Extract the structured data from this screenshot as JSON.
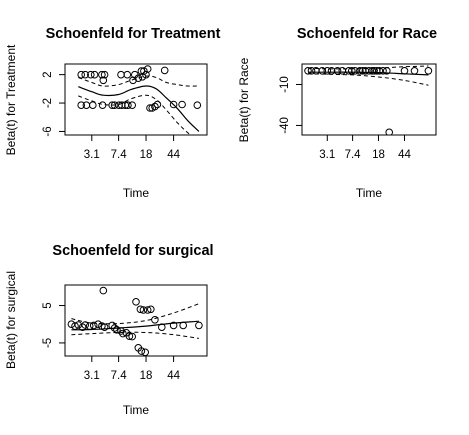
{
  "chart_data": [
    {
      "type": "scatter",
      "title": "Schoenfeld for Treatment",
      "xlabel": "Time",
      "ylabel": "Beta(t) for Treatment",
      "x_scale": "log",
      "xticks": [
        3.1,
        7.4,
        18,
        44
      ],
      "xlim": [
        1.3,
        130
      ],
      "yticks": [
        2,
        -2,
        -6
      ],
      "ylim": [
        -6.5,
        3.5
      ],
      "points": [
        {
          "x": 2.2,
          "y": 2.0
        },
        {
          "x": 2.5,
          "y": 2.0
        },
        {
          "x": 3.0,
          "y": 2.0
        },
        {
          "x": 3.4,
          "y": 2.0
        },
        {
          "x": 4.3,
          "y": 2.0
        },
        {
          "x": 4.7,
          "y": 2.0
        },
        {
          "x": 4.5,
          "y": 1.2
        },
        {
          "x": 2.2,
          "y": -2.3
        },
        {
          "x": 2.6,
          "y": -2.3
        },
        {
          "x": 3.2,
          "y": -2.3
        },
        {
          "x": 4.4,
          "y": -2.3
        },
        {
          "x": 6.0,
          "y": -2.3
        },
        {
          "x": 6.5,
          "y": -2.3
        },
        {
          "x": 7.5,
          "y": -2.3
        },
        {
          "x": 8.2,
          "y": -2.3
        },
        {
          "x": 9.2,
          "y": -2.3
        },
        {
          "x": 10.0,
          "y": -2.3
        },
        {
          "x": 11.5,
          "y": -2.3
        },
        {
          "x": 8.0,
          "y": 2.0
        },
        {
          "x": 9.8,
          "y": 2.0
        },
        {
          "x": 12.5,
          "y": 2.0
        },
        {
          "x": 11.8,
          "y": 1.2
        },
        {
          "x": 14.0,
          "y": 1.5
        },
        {
          "x": 15.5,
          "y": 2.5
        },
        {
          "x": 16.8,
          "y": 2.5
        },
        {
          "x": 18.0,
          "y": 2.0
        },
        {
          "x": 16.0,
          "y": 1.7
        },
        {
          "x": 19.0,
          "y": 2.8
        },
        {
          "x": 20.5,
          "y": -2.7
        },
        {
          "x": 22.0,
          "y": -2.7
        },
        {
          "x": 24.0,
          "y": -2.5
        },
        {
          "x": 26.0,
          "y": -2.2
        },
        {
          "x": 33.0,
          "y": 2.6
        },
        {
          "x": 44.0,
          "y": -2.2
        },
        {
          "x": 58.0,
          "y": -2.2
        },
        {
          "x": 95.0,
          "y": -2.3
        }
      ],
      "curve": [
        {
          "x": 2.0,
          "y": 0.3
        },
        {
          "x": 3.1,
          "y": -0.4
        },
        {
          "x": 4.5,
          "y": -0.9
        },
        {
          "x": 7.4,
          "y": -0.8
        },
        {
          "x": 11.0,
          "y": -0.1
        },
        {
          "x": 18.0,
          "y": 0.4
        },
        {
          "x": 25.0,
          "y": 0.0
        },
        {
          "x": 35.0,
          "y": -1.3
        },
        {
          "x": 50.0,
          "y": -2.8
        },
        {
          "x": 70.0,
          "y": -4.5
        },
        {
          "x": 100.0,
          "y": -6.0
        }
      ],
      "upper_band": [
        {
          "x": 2.0,
          "y": 1.6
        },
        {
          "x": 3.1,
          "y": 0.9
        },
        {
          "x": 4.5,
          "y": 0.4
        },
        {
          "x": 7.4,
          "y": 0.6
        },
        {
          "x": 11.0,
          "y": 1.2
        },
        {
          "x": 18.0,
          "y": 1.8
        },
        {
          "x": 25.0,
          "y": 1.6
        },
        {
          "x": 35.0,
          "y": 0.9
        },
        {
          "x": 50.0,
          "y": 0.6
        },
        {
          "x": 70.0,
          "y": 0.4
        },
        {
          "x": 100.0,
          "y": 0.4
        }
      ],
      "lower_band": [
        {
          "x": 2.0,
          "y": -1.0
        },
        {
          "x": 3.1,
          "y": -1.7
        },
        {
          "x": 4.5,
          "y": -2.2
        },
        {
          "x": 7.4,
          "y": -2.2
        },
        {
          "x": 11.0,
          "y": -1.4
        },
        {
          "x": 18.0,
          "y": -0.9
        },
        {
          "x": 25.0,
          "y": -1.5
        },
        {
          "x": 35.0,
          "y": -3.0
        },
        {
          "x": 50.0,
          "y": -4.8
        },
        {
          "x": 70.0,
          "y": -6.2
        },
        {
          "x": 100.0,
          "y": -7.5
        }
      ]
    },
    {
      "type": "scatter",
      "title": "Schoenfeld for Race",
      "xlabel": "Time",
      "ylabel": "Beta(t) for Race",
      "x_scale": "log",
      "xticks": [
        3.1,
        7.4,
        18,
        44
      ],
      "xlim": [
        1.3,
        130
      ],
      "yticks": [
        -10,
        -40
      ],
      "ylim": [
        -47,
        5
      ],
      "points": [
        {
          "x": 1.6,
          "y": 0.0
        },
        {
          "x": 1.8,
          "y": 0.0
        },
        {
          "x": 2.1,
          "y": 0.0
        },
        {
          "x": 2.6,
          "y": 0.0
        },
        {
          "x": 3.1,
          "y": 0.0
        },
        {
          "x": 3.6,
          "y": 0.0
        },
        {
          "x": 4.4,
          "y": 0.0
        },
        {
          "x": 5.2,
          "y": 0.0
        },
        {
          "x": 6.5,
          "y": 0.0
        },
        {
          "x": 7.2,
          "y": 0.0
        },
        {
          "x": 8.0,
          "y": 0.0
        },
        {
          "x": 9.5,
          "y": 0.0
        },
        {
          "x": 10.5,
          "y": 0.0
        },
        {
          "x": 11.5,
          "y": 0.0
        },
        {
          "x": 13.0,
          "y": 0.0
        },
        {
          "x": 14.5,
          "y": 0.0
        },
        {
          "x": 15.5,
          "y": 0.0
        },
        {
          "x": 17.0,
          "y": 0.0
        },
        {
          "x": 18.5,
          "y": 0.0
        },
        {
          "x": 21.0,
          "y": 0.0
        },
        {
          "x": 24.0,
          "y": 0.0
        },
        {
          "x": 26.0,
          "y": -45.0
        },
        {
          "x": 44.0,
          "y": 0.0
        },
        {
          "x": 62.0,
          "y": 0.0
        },
        {
          "x": 100.0,
          "y": 0.0
        }
      ],
      "curve": [
        {
          "x": 1.6,
          "y": -1.0
        },
        {
          "x": 3.1,
          "y": -1.0
        },
        {
          "x": 7.4,
          "y": -1.0
        },
        {
          "x": 18.0,
          "y": -1.3
        },
        {
          "x": 44.0,
          "y": -2.2
        },
        {
          "x": 100.0,
          "y": -3.0
        }
      ],
      "upper_band": [
        {
          "x": 1.6,
          "y": 2.0
        },
        {
          "x": 3.1,
          "y": 1.5
        },
        {
          "x": 7.4,
          "y": 1.5
        },
        {
          "x": 18.0,
          "y": 2.0
        },
        {
          "x": 44.0,
          "y": 3.0
        },
        {
          "x": 100.0,
          "y": 3.5
        }
      ],
      "lower_band": [
        {
          "x": 1.6,
          "y": -2.0
        },
        {
          "x": 3.1,
          "y": -2.5
        },
        {
          "x": 7.4,
          "y": -3.0
        },
        {
          "x": 18.0,
          "y": -4.5
        },
        {
          "x": 44.0,
          "y": -7.0
        },
        {
          "x": 100.0,
          "y": -10.5
        }
      ]
    },
    {
      "type": "scatter",
      "title": "Schoenfeld for surgical",
      "xlabel": "Time",
      "ylabel": "Beta(t) for surgical",
      "x_scale": "log",
      "xticks": [
        3.1,
        7.4,
        18,
        44
      ],
      "xlim": [
        1.3,
        130
      ],
      "yticks": [
        5,
        -5
      ],
      "ylim": [
        -8.5,
        10.5
      ],
      "points": [
        {
          "x": 1.6,
          "y": 0.0
        },
        {
          "x": 1.8,
          "y": -0.5
        },
        {
          "x": 2.0,
          "y": -0.2
        },
        {
          "x": 2.3,
          "y": -0.8
        },
        {
          "x": 2.5,
          "y": -0.2
        },
        {
          "x": 2.9,
          "y": -0.5
        },
        {
          "x": 3.3,
          "y": -0.3
        },
        {
          "x": 3.8,
          "y": 0.0
        },
        {
          "x": 4.3,
          "y": -0.5
        },
        {
          "x": 4.7,
          "y": -0.8
        },
        {
          "x": 4.5,
          "y": 9.0
        },
        {
          "x": 6.0,
          "y": -0.3
        },
        {
          "x": 6.5,
          "y": -1.0
        },
        {
          "x": 7.0,
          "y": -1.5
        },
        {
          "x": 8.0,
          "y": -1.8
        },
        {
          "x": 8.5,
          "y": -2.5
        },
        {
          "x": 9.5,
          "y": -2.3
        },
        {
          "x": 10.5,
          "y": -3.2
        },
        {
          "x": 11.5,
          "y": -3.3
        },
        {
          "x": 13.0,
          "y": 6.0
        },
        {
          "x": 15.0,
          "y": 4.0
        },
        {
          "x": 16.5,
          "y": 3.8
        },
        {
          "x": 19.0,
          "y": 3.8
        },
        {
          "x": 21.0,
          "y": 4.0
        },
        {
          "x": 14.0,
          "y": -6.3
        },
        {
          "x": 15.5,
          "y": -7.2
        },
        {
          "x": 17.5,
          "y": -7.5
        },
        {
          "x": 24.0,
          "y": 1.2
        },
        {
          "x": 30.0,
          "y": -0.8
        },
        {
          "x": 44.0,
          "y": -0.3
        },
        {
          "x": 60.0,
          "y": -0.3
        },
        {
          "x": 100.0,
          "y": -0.3
        }
      ],
      "curve": [
        {
          "x": 1.6,
          "y": -1.5
        },
        {
          "x": 3.1,
          "y": -1.4
        },
        {
          "x": 7.4,
          "y": -1.0
        },
        {
          "x": 18.0,
          "y": -0.5
        },
        {
          "x": 44.0,
          "y": 0.3
        },
        {
          "x": 100.0,
          "y": 0.8
        }
      ],
      "upper_band": [
        {
          "x": 1.6,
          "y": 1.5
        },
        {
          "x": 3.1,
          "y": 0.3
        },
        {
          "x": 7.4,
          "y": 0.2
        },
        {
          "x": 18.0,
          "y": 1.0
        },
        {
          "x": 44.0,
          "y": 3.0
        },
        {
          "x": 100.0,
          "y": 5.5
        }
      ],
      "lower_band": [
        {
          "x": 1.6,
          "y": -2.8
        },
        {
          "x": 3.1,
          "y": -2.5
        },
        {
          "x": 7.4,
          "y": -2.2
        },
        {
          "x": 18.0,
          "y": -2.2
        },
        {
          "x": 44.0,
          "y": -2.8
        },
        {
          "x": 100.0,
          "y": -3.8
        }
      ]
    }
  ]
}
